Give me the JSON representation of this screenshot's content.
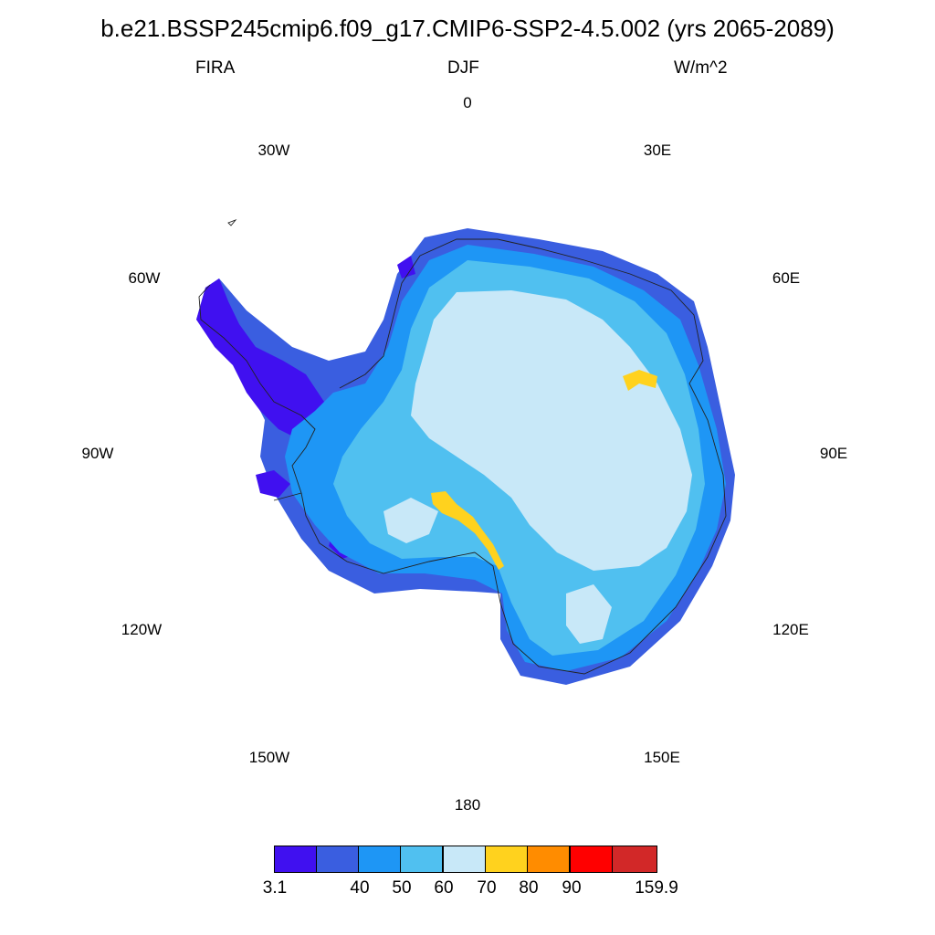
{
  "title": "b.e21.BSSP245cmip6.f09_g17.CMIP6-SSP2-4.5.002 (yrs 2065-2089)",
  "subtitle_left": "FIRA",
  "subtitle_center": "DJF",
  "subtitle_right": "W/m^2",
  "longitude_labels": {
    "lon_0": "0",
    "lon_30e": "30E",
    "lon_60e": "60E",
    "lon_90e": "90E",
    "lon_120e": "120E",
    "lon_150e": "150E",
    "lon_180": "180",
    "lon_150w": "150W",
    "lon_120w": "120W",
    "lon_90w": "90W",
    "lon_60w": "60W",
    "lon_30w": "30W"
  },
  "colorbar": {
    "colors": [
      "#4010f0",
      "#3a5ee0",
      "#1e96f5",
      "#50c0f0",
      "#c8e8f8",
      "#ffd21e",
      "#ff8c00",
      "#ff0000",
      "#d22828"
    ],
    "labels": [
      "3.1",
      "40",
      "50",
      "60",
      "70",
      "80",
      "90",
      "159.9"
    ]
  },
  "map_colors": {
    "bin_40": "#3a5ee0",
    "bin_50": "#1e96f5",
    "bin_60": "#50c0f0",
    "bin_70": "#c8e8f8",
    "bin_80": "#ffd21e",
    "bin_low": "#4010f0",
    "coastline": "#222222"
  }
}
